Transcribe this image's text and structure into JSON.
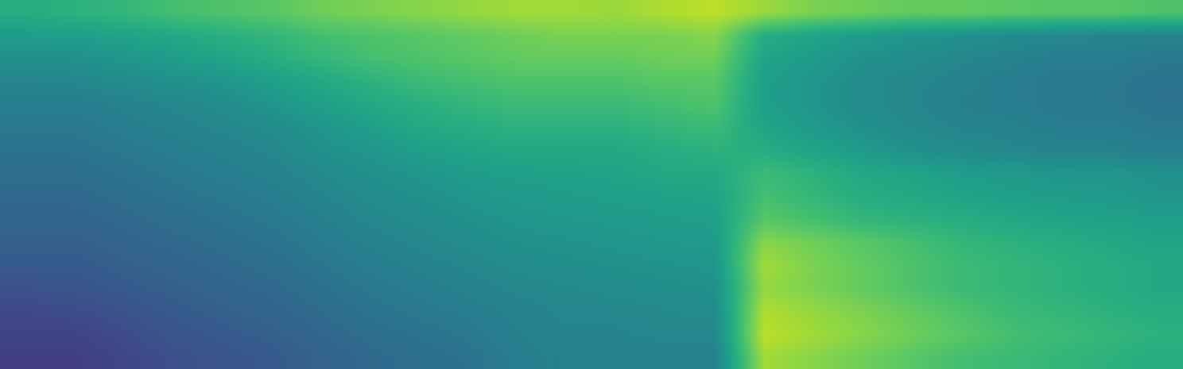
{
  "chart_data": {
    "type": "heatmap",
    "color": "Viridis",
    "tick_labels": false,
    "zlim": [
      0,
      1
    ],
    "z": [
      [
        0.62,
        0.64,
        0.66,
        0.7,
        0.72,
        0.74,
        0.78,
        0.8,
        0.82,
        0.84,
        0.86,
        0.86,
        0.85,
        0.88,
        0.9,
        0.85,
        0.8,
        0.78,
        0.76,
        0.76,
        0.75,
        0.74,
        0.74,
        0.72
      ],
      [
        0.55,
        0.56,
        0.58,
        0.6,
        0.63,
        0.66,
        0.7,
        0.72,
        0.74,
        0.76,
        0.78,
        0.8,
        0.8,
        0.8,
        0.82,
        0.62,
        0.58,
        0.55,
        0.52,
        0.5,
        0.48,
        0.47,
        0.46,
        0.45
      ],
      [
        0.5,
        0.5,
        0.52,
        0.55,
        0.58,
        0.62,
        0.66,
        0.7,
        0.72,
        0.74,
        0.76,
        0.76,
        0.76,
        0.78,
        0.78,
        0.58,
        0.54,
        0.5,
        0.48,
        0.46,
        0.44,
        0.42,
        0.42,
        0.4
      ],
      [
        0.45,
        0.46,
        0.48,
        0.5,
        0.52,
        0.56,
        0.6,
        0.64,
        0.68,
        0.7,
        0.72,
        0.72,
        0.72,
        0.74,
        0.74,
        0.56,
        0.52,
        0.48,
        0.46,
        0.44,
        0.42,
        0.4,
        0.4,
        0.38
      ],
      [
        0.42,
        0.42,
        0.44,
        0.46,
        0.48,
        0.52,
        0.56,
        0.6,
        0.63,
        0.66,
        0.68,
        0.68,
        0.68,
        0.7,
        0.72,
        0.56,
        0.52,
        0.48,
        0.46,
        0.43,
        0.42,
        0.4,
        0.4,
        0.38
      ],
      [
        0.4,
        0.4,
        0.42,
        0.44,
        0.46,
        0.48,
        0.52,
        0.56,
        0.6,
        0.62,
        0.64,
        0.64,
        0.64,
        0.66,
        0.68,
        0.58,
        0.54,
        0.5,
        0.47,
        0.45,
        0.44,
        0.42,
        0.42,
        0.4
      ],
      [
        0.38,
        0.38,
        0.4,
        0.42,
        0.44,
        0.46,
        0.5,
        0.52,
        0.56,
        0.58,
        0.6,
        0.6,
        0.6,
        0.62,
        0.64,
        0.62,
        0.58,
        0.54,
        0.5,
        0.48,
        0.46,
        0.45,
        0.44,
        0.42
      ],
      [
        0.36,
        0.36,
        0.38,
        0.4,
        0.42,
        0.44,
        0.47,
        0.5,
        0.52,
        0.55,
        0.56,
        0.57,
        0.58,
        0.6,
        0.6,
        0.68,
        0.64,
        0.6,
        0.58,
        0.55,
        0.54,
        0.52,
        0.52,
        0.5
      ],
      [
        0.34,
        0.34,
        0.36,
        0.38,
        0.4,
        0.42,
        0.45,
        0.48,
        0.5,
        0.52,
        0.54,
        0.55,
        0.56,
        0.57,
        0.58,
        0.7,
        0.66,
        0.62,
        0.6,
        0.58,
        0.56,
        0.55,
        0.54,
        0.52
      ],
      [
        0.32,
        0.32,
        0.34,
        0.36,
        0.38,
        0.4,
        0.43,
        0.46,
        0.48,
        0.5,
        0.52,
        0.53,
        0.54,
        0.55,
        0.56,
        0.74,
        0.7,
        0.66,
        0.64,
        0.62,
        0.6,
        0.58,
        0.57,
        0.56
      ],
      [
        0.3,
        0.3,
        0.32,
        0.34,
        0.36,
        0.38,
        0.41,
        0.44,
        0.46,
        0.48,
        0.5,
        0.51,
        0.52,
        0.53,
        0.54,
        0.82,
        0.78,
        0.74,
        0.7,
        0.66,
        0.64,
        0.62,
        0.6,
        0.58
      ],
      [
        0.28,
        0.28,
        0.3,
        0.32,
        0.34,
        0.36,
        0.39,
        0.42,
        0.44,
        0.46,
        0.48,
        0.49,
        0.5,
        0.51,
        0.52,
        0.86,
        0.8,
        0.76,
        0.72,
        0.68,
        0.66,
        0.64,
        0.62,
        0.6
      ],
      [
        0.25,
        0.26,
        0.28,
        0.3,
        0.32,
        0.34,
        0.37,
        0.4,
        0.42,
        0.44,
        0.46,
        0.47,
        0.48,
        0.49,
        0.5,
        0.84,
        0.8,
        0.76,
        0.72,
        0.68,
        0.66,
        0.64,
        0.62,
        0.6
      ],
      [
        0.22,
        0.23,
        0.25,
        0.28,
        0.3,
        0.32,
        0.35,
        0.38,
        0.4,
        0.42,
        0.44,
        0.46,
        0.46,
        0.47,
        0.48,
        0.88,
        0.84,
        0.8,
        0.76,
        0.72,
        0.68,
        0.66,
        0.64,
        0.62
      ],
      [
        0.2,
        0.2,
        0.23,
        0.26,
        0.28,
        0.3,
        0.33,
        0.36,
        0.38,
        0.4,
        0.43,
        0.45,
        0.45,
        0.46,
        0.46,
        0.9,
        0.86,
        0.82,
        0.78,
        0.74,
        0.7,
        0.68,
        0.66,
        0.64
      ],
      [
        0.18,
        0.18,
        0.21,
        0.24,
        0.26,
        0.28,
        0.31,
        0.34,
        0.36,
        0.38,
        0.42,
        0.44,
        0.44,
        0.44,
        0.44,
        0.86,
        0.82,
        0.78,
        0.74,
        0.7,
        0.68,
        0.66,
        0.64,
        0.62
      ]
    ]
  }
}
